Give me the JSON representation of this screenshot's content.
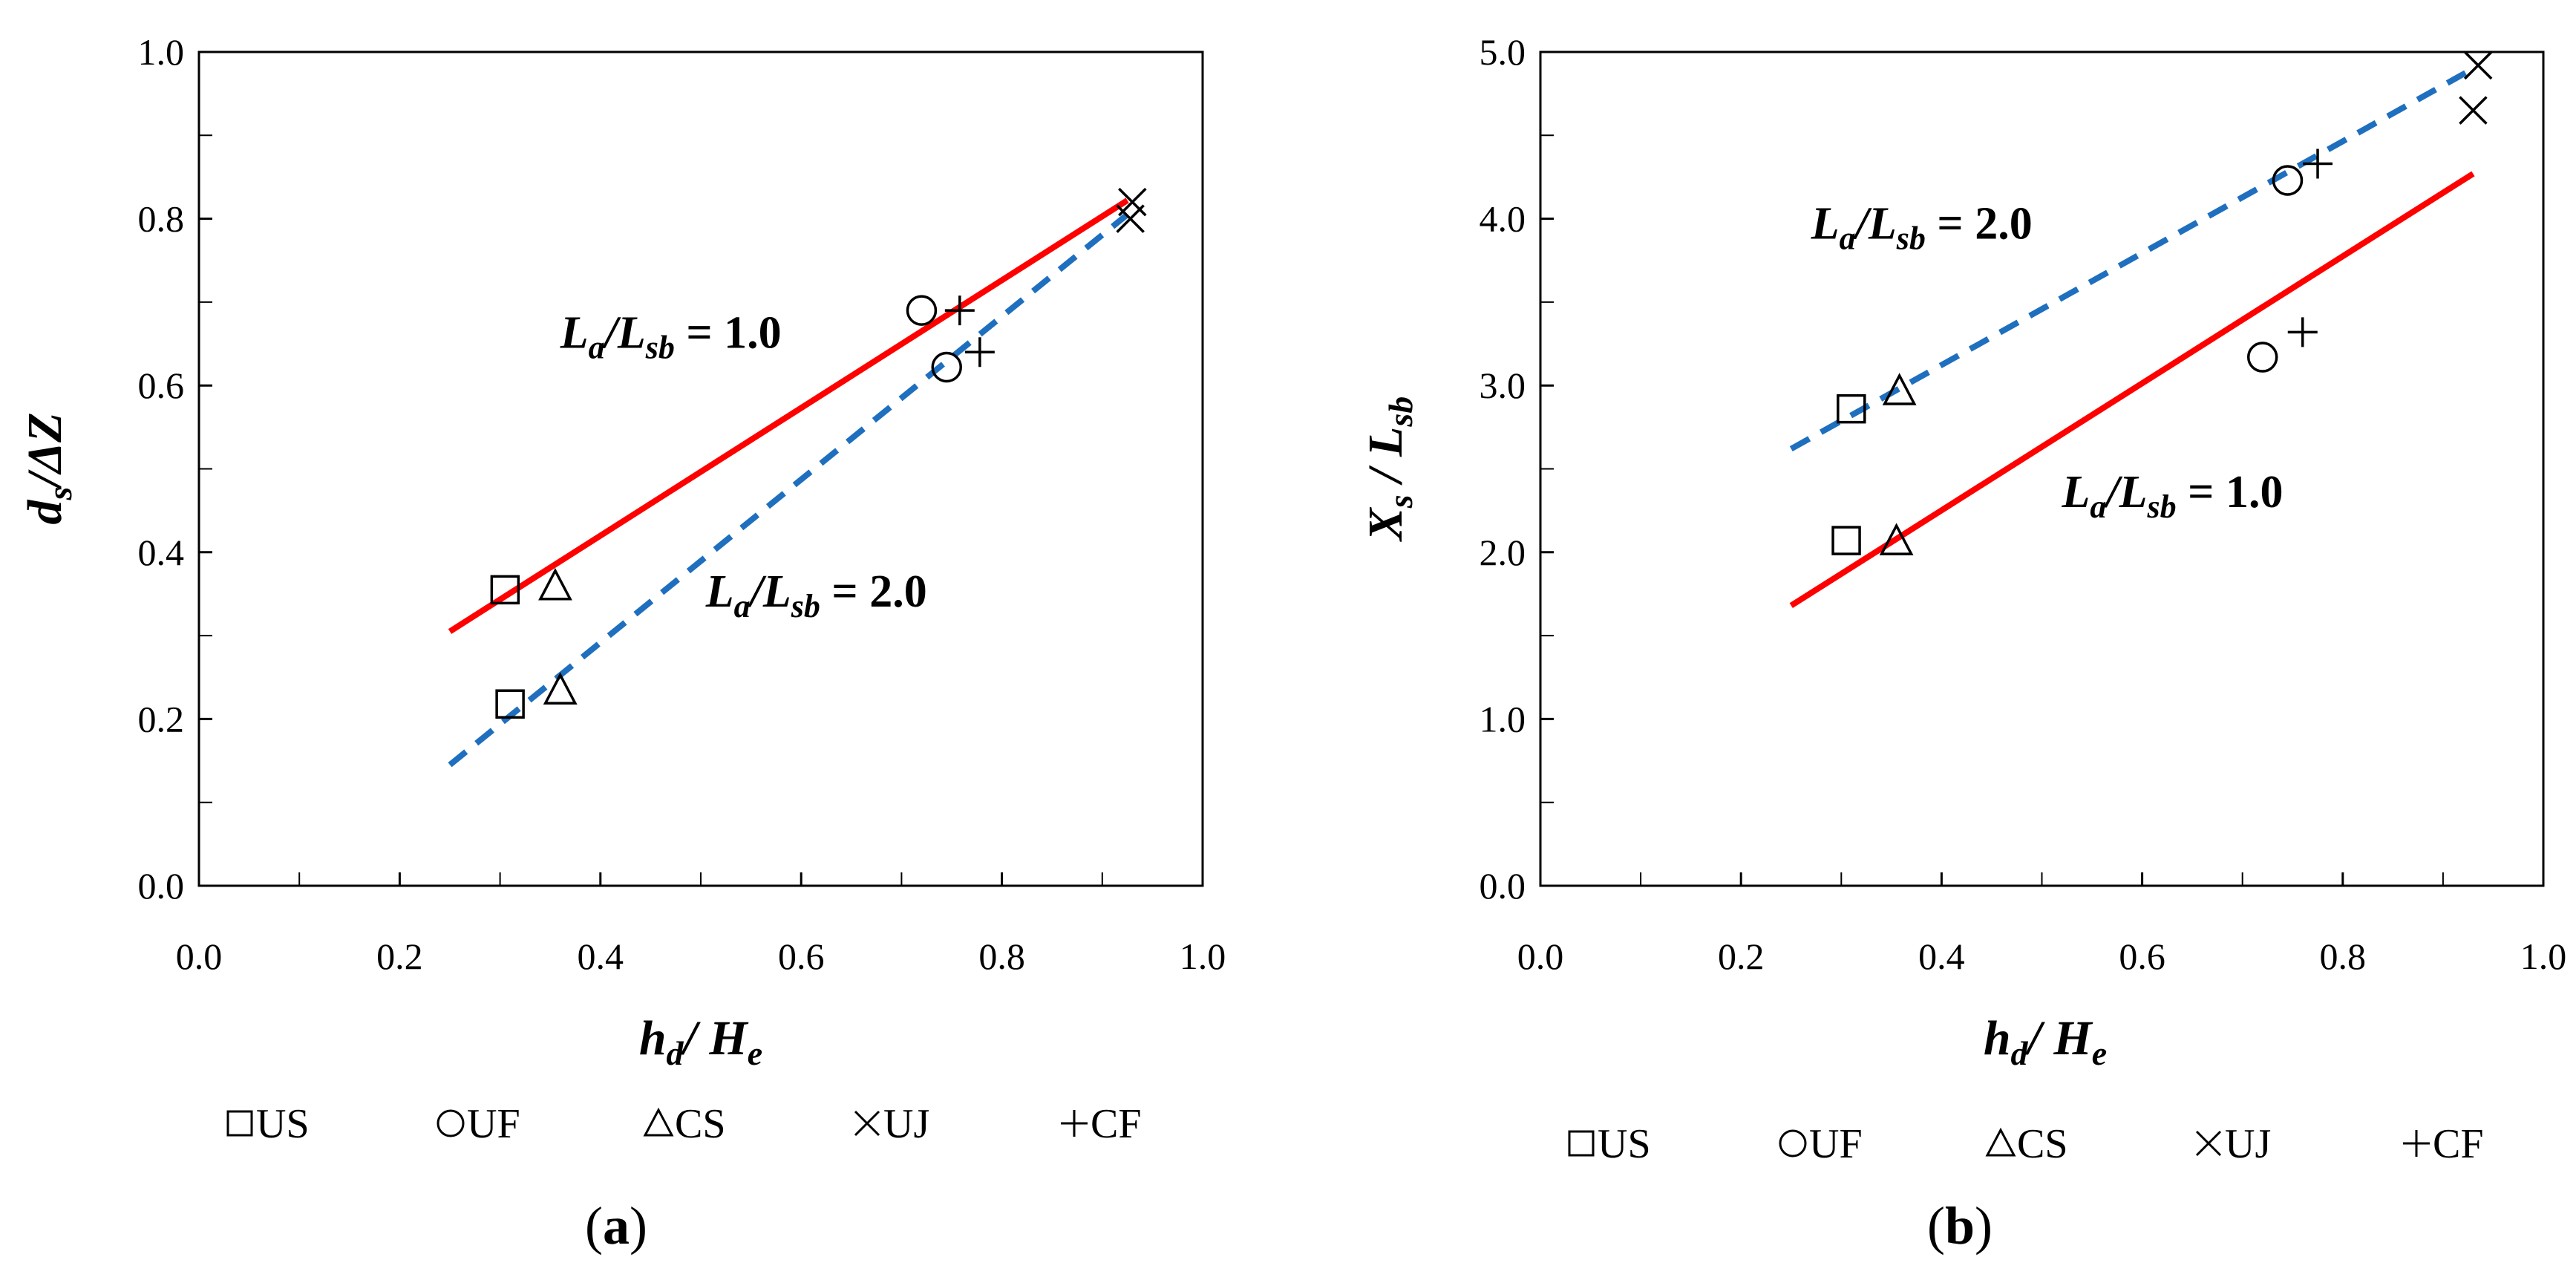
{
  "chart_data": [
    {
      "id": "a",
      "type": "scatter",
      "panel_label": [
        "(",
        "a",
        ")"
      ],
      "xlabel": {
        "main": "h",
        "main_sub": "d",
        "sep": "/ ",
        "den": "H",
        "den_sub": "e"
      },
      "ylabel": {
        "main": "d",
        "main_sub": "s",
        "sep": "/",
        "den": "ΔZ",
        "den_sub": ""
      },
      "xlim": [
        0,
        1
      ],
      "ylim": [
        0,
        1
      ],
      "x_ticks": [
        "0.0",
        "0.2",
        "0.4",
        "0.6",
        "0.8",
        "1.0"
      ],
      "y_ticks": [
        "0.0",
        "0.2",
        "0.4",
        "0.6",
        "0.8",
        "1.0"
      ],
      "grid": false,
      "fit_lines": [
        {
          "color": "#ff0000",
          "dashed": false,
          "x": [
            0.25,
            0.925
          ],
          "y": [
            0.305,
            0.822
          ]
        },
        {
          "color": "#1f6fbf",
          "dashed": true,
          "x": [
            0.25,
            0.925
          ],
          "y": [
            0.145,
            0.805
          ]
        }
      ],
      "annotations": [
        {
          "num": "L",
          "num_sub": "a",
          "sep": "/",
          "den": "L",
          "den_sub": "sb",
          "value": " = 1.0",
          "x": 0.36,
          "y": 0.645
        },
        {
          "num": "L",
          "num_sub": "a",
          "sep": "/",
          "den": "L",
          "den_sub": "sb",
          "value": " = 2.0",
          "x": 0.505,
          "y": 0.335
        }
      ],
      "series": [
        {
          "name": "US",
          "marker": "square",
          "points": [
            [
              0.305,
              0.355
            ],
            [
              0.31,
              0.218
            ]
          ]
        },
        {
          "name": "UF",
          "marker": "circle",
          "points": [
            [
              0.72,
              0.69
            ],
            [
              0.745,
              0.622
            ]
          ]
        },
        {
          "name": "CS",
          "marker": "triangle",
          "points": [
            [
              0.355,
              0.36
            ],
            [
              0.36,
              0.235
            ]
          ]
        },
        {
          "name": "UJ",
          "marker": "x",
          "points": [
            [
              0.93,
              0.82
            ],
            [
              0.928,
              0.8
            ]
          ]
        },
        {
          "name": "CF",
          "marker": "plus",
          "points": [
            [
              0.758,
              0.69
            ],
            [
              0.778,
              0.64
            ]
          ]
        }
      ],
      "legend": [
        "US",
        "UF",
        "CS",
        "UJ",
        "CF"
      ],
      "legend_position": "bottom"
    },
    {
      "id": "b",
      "type": "scatter",
      "panel_label": [
        "(",
        "b",
        ")"
      ],
      "xlabel": {
        "main": "h",
        "main_sub": "d",
        "sep": "/ ",
        "den": "H",
        "den_sub": "e"
      },
      "ylabel": {
        "main": "X",
        "main_sub": "s",
        "sep": " / ",
        "den": "L",
        "den_sub": "sb"
      },
      "xlim": [
        0,
        1
      ],
      "ylim": [
        0,
        5
      ],
      "x_ticks": [
        "0.0",
        "0.2",
        "0.4",
        "0.6",
        "0.8",
        "1.0"
      ],
      "y_ticks": [
        "0.0",
        "1.0",
        "2.0",
        "3.0",
        "4.0",
        "5.0"
      ],
      "grid": false,
      "fit_lines": [
        {
          "color": "#1f6fbf",
          "dashed": true,
          "x": [
            0.25,
            0.93
          ],
          "y": [
            2.62,
            4.9
          ]
        },
        {
          "color": "#ff0000",
          "dashed": false,
          "x": [
            0.25,
            0.93
          ],
          "y": [
            1.68,
            4.27
          ]
        }
      ],
      "annotations": [
        {
          "num": "L",
          "num_sub": "a",
          "sep": "/",
          "den": "L",
          "den_sub": "sb",
          "value": " = 2.0",
          "x": 0.27,
          "y": 3.88
        },
        {
          "num": "L",
          "num_sub": "a",
          "sep": "/",
          "den": "L",
          "den_sub": "sb",
          "value": " = 1.0",
          "x": 0.52,
          "y": 2.27
        }
      ],
      "series": [
        {
          "name": "US",
          "marker": "square",
          "points": [
            [
              0.31,
              2.86
            ],
            [
              0.305,
              2.07
            ]
          ]
        },
        {
          "name": "UF",
          "marker": "circle",
          "points": [
            [
              0.745,
              4.23
            ],
            [
              0.72,
              3.17
            ]
          ]
        },
        {
          "name": "CS",
          "marker": "triangle",
          "points": [
            [
              0.358,
              2.97
            ],
            [
              0.355,
              2.07
            ]
          ]
        },
        {
          "name": "UJ",
          "marker": "x",
          "points": [
            [
              0.935,
              4.92
            ],
            [
              0.93,
              4.65
            ]
          ]
        },
        {
          "name": "CF",
          "marker": "plus",
          "points": [
            [
              0.775,
              4.33
            ],
            [
              0.76,
              3.32
            ]
          ]
        }
      ],
      "legend": [
        "US",
        "UF",
        "CS",
        "UJ",
        "CF"
      ],
      "legend_position": "bottom"
    }
  ]
}
